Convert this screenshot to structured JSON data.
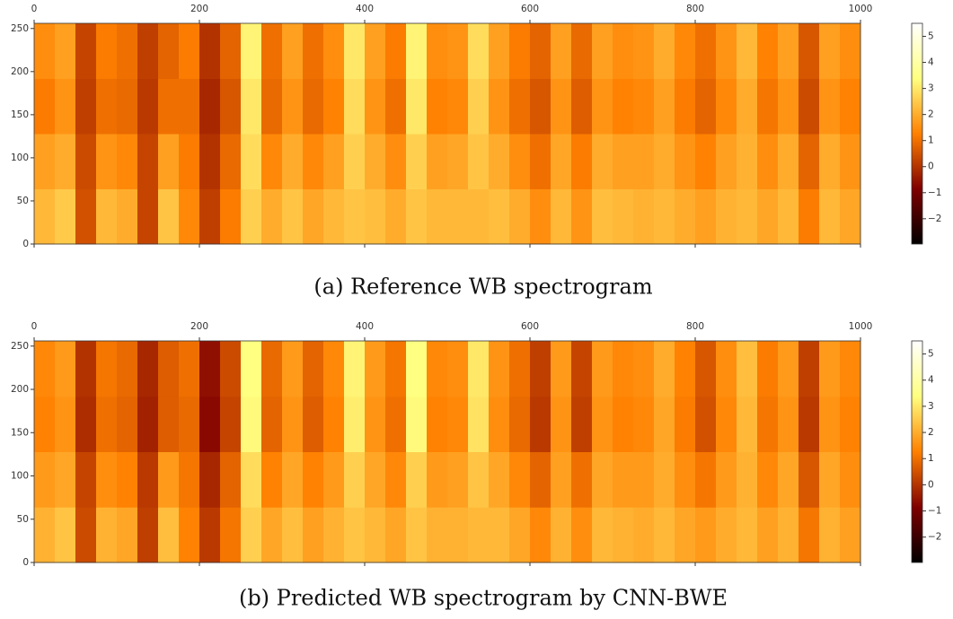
{
  "chart_data": [
    {
      "type": "heatmap",
      "colormap": "afmhot",
      "caption": "(a) Reference WB spectrogram",
      "xlim": [
        0,
        1000
      ],
      "xticks": [
        0,
        200,
        400,
        600,
        800,
        1000
      ],
      "ylim": [
        0,
        256
      ],
      "yticks": [
        0,
        50,
        100,
        150,
        200,
        250
      ],
      "clim": [
        -2.97,
        5.5
      ],
      "cticks": [
        {
          "value": -2,
          "label": "−2"
        },
        {
          "value": -1,
          "label": "−1"
        },
        0,
        1,
        2,
        3,
        4,
        5
      ],
      "values": [
        [
          2.2,
          2.5,
          0.5,
          2.2,
          2.0,
          0.3,
          2.4,
          1.4,
          0.2,
          1.2,
          2.6,
          2.0,
          2.4,
          1.9,
          2.2,
          2.4,
          2.3,
          2.0,
          2.4,
          2.2,
          2.2,
          2.2,
          2.3,
          2.0,
          1.5,
          2.2,
          1.6,
          2.3,
          2.2,
          2.1,
          2.2,
          2.0,
          1.8,
          2.1,
          2.2,
          1.9,
          2.2,
          1.2,
          2.2,
          1.9
        ],
        [
          1.8,
          2.0,
          0.4,
          1.6,
          1.4,
          0.3,
          1.8,
          1.2,
          0.0,
          0.9,
          2.8,
          1.4,
          2.0,
          1.4,
          1.8,
          2.6,
          2.0,
          1.5,
          2.6,
          1.8,
          1.9,
          2.4,
          2.0,
          1.5,
          1.0,
          1.9,
          1.2,
          2.0,
          1.8,
          1.8,
          2.0,
          1.6,
          1.3,
          1.8,
          2.1,
          1.5,
          2.0,
          0.8,
          2.0,
          1.6
        ],
        [
          1.2,
          1.6,
          0.2,
          1.0,
          0.9,
          0.1,
          1.0,
          1.0,
          -0.2,
          0.6,
          3.0,
          0.9,
          1.6,
          0.9,
          1.3,
          2.8,
          1.6,
          1.0,
          3.0,
          1.3,
          1.4,
          2.6,
          1.6,
          1.0,
          0.6,
          1.6,
          0.7,
          1.6,
          1.3,
          1.4,
          1.8,
          1.2,
          0.8,
          1.4,
          2.0,
          1.1,
          1.6,
          0.4,
          1.6,
          1.3
        ],
        [
          1.5,
          1.8,
          0.3,
          1.2,
          1.0,
          0.2,
          0.8,
          1.2,
          0.0,
          0.8,
          3.2,
          1.0,
          1.8,
          1.0,
          1.5,
          3.0,
          1.8,
          1.2,
          3.2,
          1.5,
          1.6,
          2.8,
          1.8,
          1.2,
          0.8,
          1.8,
          0.9,
          1.8,
          1.5,
          1.6,
          2.0,
          1.4,
          1.0,
          1.6,
          2.2,
          1.3,
          1.8,
          0.6,
          1.8,
          1.5
        ]
      ]
    },
    {
      "type": "heatmap",
      "colormap": "afmhot",
      "caption": "(b) Predicted WB spectrogram by CNN-BWE",
      "xlim": [
        0,
        1000
      ],
      "xticks": [
        0,
        200,
        400,
        600,
        800,
        1000
      ],
      "ylim": [
        0,
        256
      ],
      "yticks": [
        0,
        50,
        100,
        150,
        200,
        250
      ],
      "clim": [
        -2.97,
        5.5
      ],
      "cticks": [
        {
          "value": -2,
          "label": "−2"
        },
        {
          "value": -1,
          "label": "−1"
        },
        0,
        1,
        2,
        3,
        4,
        5
      ],
      "values": [
        [
          2.1,
          2.4,
          0.4,
          2.1,
          1.9,
          0.2,
          2.3,
          1.3,
          0.1,
          1.1,
          2.6,
          1.9,
          2.3,
          1.8,
          2.1,
          2.4,
          2.2,
          1.9,
          2.4,
          2.1,
          2.1,
          2.2,
          2.2,
          1.9,
          1.4,
          2.1,
          1.5,
          2.2,
          2.1,
          2.0,
          2.2,
          1.9,
          1.7,
          2.0,
          2.2,
          1.8,
          2.1,
          1.1,
          2.1,
          1.8
        ],
        [
          1.7,
          1.9,
          0.3,
          1.5,
          1.3,
          0.1,
          1.7,
          1.1,
          -0.2,
          0.8,
          2.8,
          1.3,
          1.9,
          1.3,
          1.7,
          2.6,
          1.9,
          1.4,
          2.6,
          1.7,
          1.8,
          2.4,
          1.9,
          1.4,
          0.8,
          1.8,
          1.0,
          1.9,
          1.7,
          1.7,
          2.0,
          1.5,
          1.1,
          1.7,
          2.1,
          1.4,
          1.9,
          0.6,
          1.9,
          1.5
        ],
        [
          1.3,
          1.6,
          -0.1,
          1.0,
          0.8,
          -0.3,
          0.7,
          0.9,
          -0.7,
          0.3,
          3.3,
          0.8,
          1.6,
          0.7,
          1.3,
          3.1,
          1.6,
          1.0,
          3.3,
          1.3,
          1.4,
          2.9,
          1.5,
          0.9,
          0.1,
          1.6,
          0.2,
          1.6,
          1.3,
          1.4,
          1.9,
          1.2,
          0.5,
          1.4,
          2.2,
          1.1,
          1.6,
          0.1,
          1.6,
          1.3
        ],
        [
          1.4,
          1.7,
          0.0,
          1.1,
          0.9,
          -0.2,
          0.7,
          1.0,
          -0.6,
          0.4,
          3.4,
          0.9,
          1.7,
          0.8,
          1.4,
          3.2,
          1.7,
          1.1,
          3.4,
          1.4,
          1.5,
          3.0,
          1.6,
          1.0,
          0.2,
          1.7,
          0.3,
          1.7,
          1.4,
          1.5,
          2.0,
          1.3,
          0.6,
          1.5,
          2.3,
          1.2,
          1.7,
          0.2,
          1.7,
          1.4
        ]
      ]
    }
  ]
}
